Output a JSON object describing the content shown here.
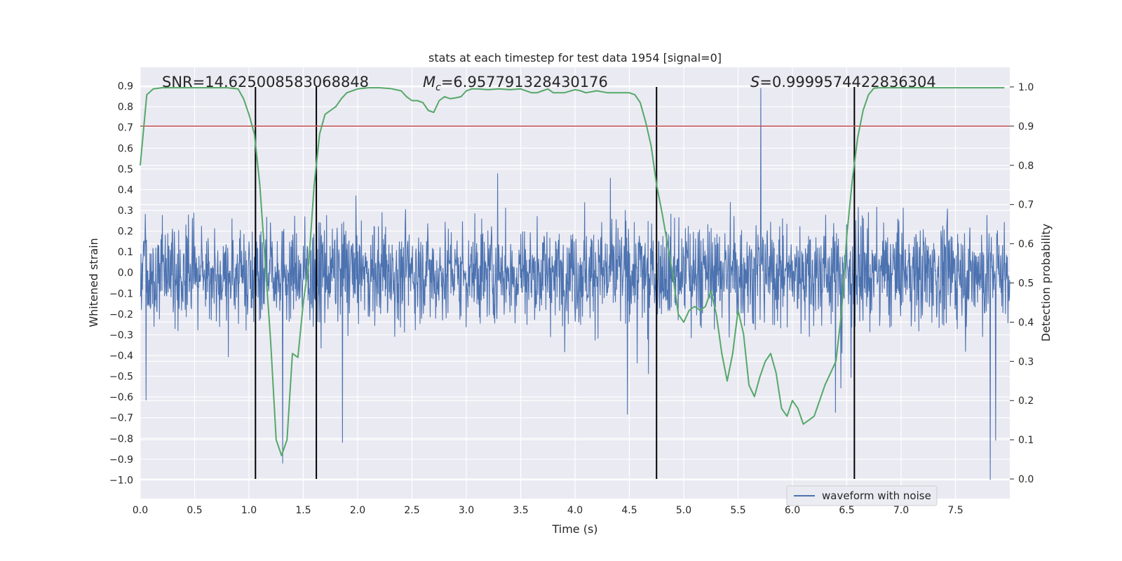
{
  "chart_data": {
    "type": "line",
    "title": "stats at each timestep for test data 1954 [signal=0]",
    "xlabel": "Time (s)",
    "ylabel_left": "Whitened strain",
    "ylabel_right": "Detection probability",
    "xlim": [
      0,
      8.0
    ],
    "ylim_left": [
      -1.09,
      0.99
    ],
    "ylim_right": [
      -0.05,
      1.05
    ],
    "x_ticks": [
      "0.0",
      "0.5",
      "1.0",
      "1.5",
      "2.0",
      "2.5",
      "3.0",
      "3.5",
      "4.0",
      "4.5",
      "5.0",
      "5.5",
      "6.0",
      "6.5",
      "7.0",
      "7.5"
    ],
    "y_ticks_left": [
      "0.9",
      "0.8",
      "0.7",
      "0.6",
      "0.5",
      "0.4",
      "0.3",
      "0.2",
      "0.1",
      "0.0",
      "−0.1",
      "−0.2",
      "−0.3",
      "−0.4",
      "−0.5",
      "−0.6",
      "−0.7",
      "−0.8",
      "−0.9",
      "−1.0"
    ],
    "y_ticks_right": [
      "1.0",
      "0.9",
      "0.8",
      "0.7",
      "0.6",
      "0.5",
      "0.4",
      "0.3",
      "0.2",
      "0.1",
      "0.0"
    ],
    "grid": true,
    "legend": {
      "placement": "lower-right",
      "entries": [
        "waveform with noise"
      ]
    },
    "annotations": {
      "snr": "SNR=14.625008583068848",
      "mc_symbol": "M",
      "mc_sub": "c",
      "mc_value": "=6.957791328430176",
      "s_symbol": "S",
      "s_value": "=0.9999574422836304"
    },
    "threshold_line": {
      "axis": "right",
      "y": 0.9,
      "color": "#c44e52"
    },
    "vertical_lines": [
      1.06,
      1.62,
      4.75,
      6.57
    ],
    "series": [
      {
        "name": "waveform with noise",
        "axis": "left",
        "color": "#4c72b0",
        "duration": 8.0,
        "points": 2400,
        "spike_examples": [
          {
            "x": 1.06,
            "y": 0.75
          },
          {
            "x": 1.31,
            "y": -0.92
          },
          {
            "x": 1.86,
            "y": -0.82
          },
          {
            "x": 5.71,
            "y": 0.89
          },
          {
            "x": 7.82,
            "y": -1.0
          },
          {
            "x": 7.87,
            "y": -0.81
          }
        ]
      },
      {
        "axis": "right",
        "color": "#55a868",
        "x": [
          0.0,
          0.06,
          0.12,
          0.2,
          0.3,
          0.4,
          0.5,
          0.6,
          0.7,
          0.8,
          0.9,
          0.95,
          1.0,
          1.05,
          1.1,
          1.15,
          1.2,
          1.25,
          1.3,
          1.35,
          1.4,
          1.45,
          1.5,
          1.55,
          1.6,
          1.65,
          1.7,
          1.75,
          1.8,
          1.85,
          1.9,
          2.0,
          2.1,
          2.2,
          2.3,
          2.4,
          2.45,
          2.5,
          2.55,
          2.6,
          2.65,
          2.7,
          2.75,
          2.8,
          2.85,
          2.9,
          2.95,
          3.0,
          3.05,
          3.1,
          3.2,
          3.3,
          3.4,
          3.5,
          3.6,
          3.65,
          3.7,
          3.75,
          3.8,
          3.9,
          4.0,
          4.05,
          4.1,
          4.2,
          4.3,
          4.4,
          4.5,
          4.55,
          4.6,
          4.65,
          4.7,
          4.75,
          4.8,
          4.85,
          4.9,
          4.95,
          5.0,
          5.05,
          5.1,
          5.15,
          5.2,
          5.25,
          5.3,
          5.35,
          5.4,
          5.45,
          5.5,
          5.55,
          5.6,
          5.65,
          5.7,
          5.75,
          5.8,
          5.85,
          5.9,
          5.95,
          6.0,
          6.05,
          6.1,
          6.15,
          6.2,
          6.25,
          6.3,
          6.35,
          6.4,
          6.45,
          6.5,
          6.55,
          6.6,
          6.65,
          6.7,
          6.75,
          6.8,
          6.9,
          7.0,
          7.2,
          7.5,
          7.8,
          7.95
        ],
        "y": [
          0.8,
          0.98,
          0.995,
          0.998,
          0.998,
          0.998,
          0.998,
          0.998,
          0.998,
          0.998,
          0.995,
          0.97,
          0.93,
          0.88,
          0.75,
          0.55,
          0.35,
          0.1,
          0.06,
          0.1,
          0.32,
          0.31,
          0.45,
          0.55,
          0.75,
          0.88,
          0.93,
          0.94,
          0.95,
          0.97,
          0.985,
          0.995,
          0.998,
          0.998,
          0.996,
          0.99,
          0.975,
          0.965,
          0.965,
          0.96,
          0.94,
          0.935,
          0.965,
          0.975,
          0.97,
          0.972,
          0.975,
          0.99,
          0.995,
          0.995,
          0.993,
          0.995,
          0.993,
          0.995,
          0.985,
          0.985,
          0.99,
          0.995,
          0.985,
          0.985,
          0.993,
          0.99,
          0.985,
          0.99,
          0.985,
          0.985,
          0.985,
          0.98,
          0.96,
          0.91,
          0.85,
          0.75,
          0.68,
          0.6,
          0.52,
          0.42,
          0.4,
          0.43,
          0.44,
          0.43,
          0.44,
          0.48,
          0.42,
          0.32,
          0.25,
          0.32,
          0.43,
          0.37,
          0.24,
          0.21,
          0.26,
          0.3,
          0.32,
          0.27,
          0.18,
          0.16,
          0.2,
          0.18,
          0.14,
          0.15,
          0.16,
          0.2,
          0.24,
          0.27,
          0.3,
          0.42,
          0.62,
          0.76,
          0.87,
          0.94,
          0.98,
          0.997,
          0.998,
          0.998,
          0.998,
          0.998,
          0.998,
          0.998,
          0.998
        ]
      }
    ]
  }
}
